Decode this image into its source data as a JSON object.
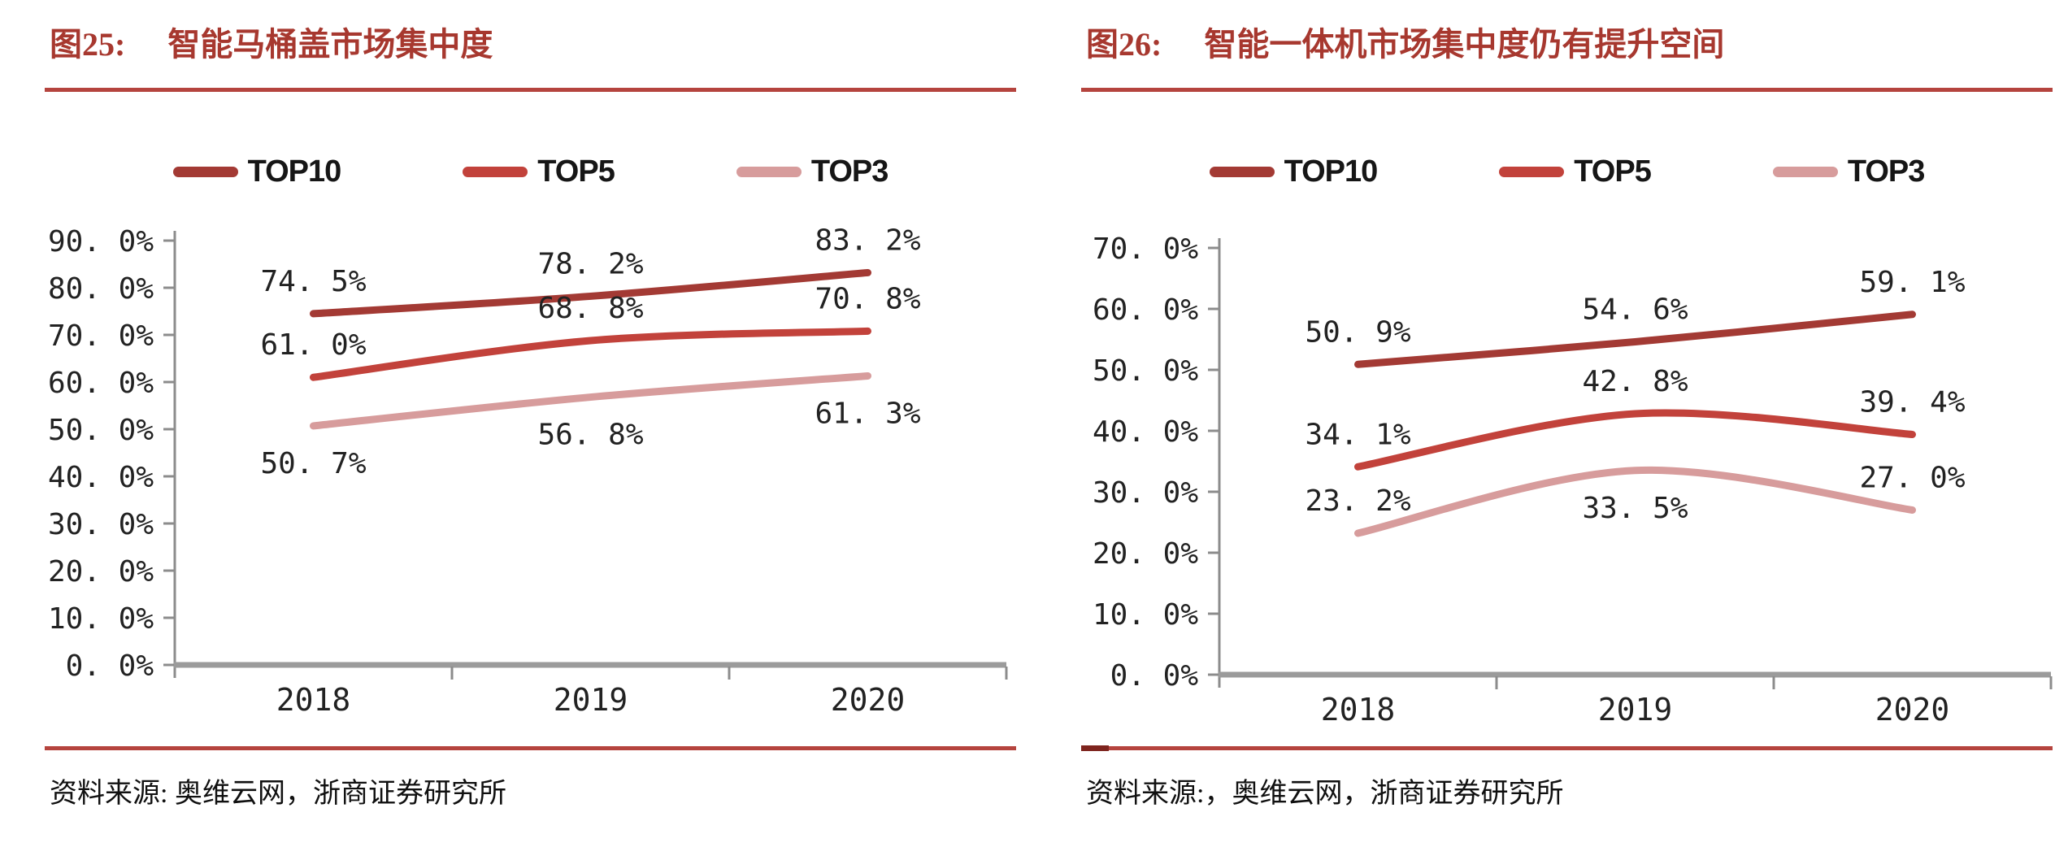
{
  "figures": [
    {
      "title_label": "图25:",
      "title": "智能马桶盖市场集中度",
      "source": "资料来源: 奥维云网，浙商证券研究所"
    },
    {
      "title_label": "图26:",
      "title": "智能一体机市场集中度仍有提升空间",
      "source": "资料来源:，奥维云网，浙商证券研究所"
    }
  ],
  "chart_data": [
    {
      "type": "line",
      "title": "智能马桶盖市场集中度",
      "categories": [
        "2018",
        "2019",
        "2020"
      ],
      "series": [
        {
          "name": "TOP10",
          "values": [
            74.5,
            78.2,
            83.2
          ],
          "labels": [
            "74. 5%",
            "78. 2%",
            "83. 2%"
          ],
          "label_side": [
            "above",
            "above",
            "above"
          ],
          "color": "#A33A34"
        },
        {
          "name": "TOP5",
          "values": [
            61.0,
            68.8,
            70.8
          ],
          "labels": [
            "61. 0%",
            "68. 8%",
            "70. 8%"
          ],
          "label_side": [
            "above",
            "above",
            "above"
          ],
          "color": "#C2423B"
        },
        {
          "name": "TOP3",
          "values": [
            50.7,
            56.8,
            61.3
          ],
          "labels": [
            "50. 7%",
            "56. 8%",
            "61. 3%"
          ],
          "label_side": [
            "below",
            "below",
            "below"
          ],
          "color": "#D79C9C"
        }
      ],
      "xlabel": "",
      "ylabel": "",
      "ylim": [
        0,
        90
      ],
      "ytick_step": 10,
      "ytick_labels": [
        "0. 0%",
        "10. 0%",
        "20. 0%",
        "30. 0%",
        "40. 0%",
        "50. 0%",
        "60. 0%",
        "70. 0%",
        "80. 0%",
        "90. 0%"
      ],
      "legend_position": "top",
      "grid": false,
      "smoothed_lines": true
    },
    {
      "type": "line",
      "title": "智能一体机市场集中度仍有提升空间",
      "categories": [
        "2018",
        "2019",
        "2020"
      ],
      "series": [
        {
          "name": "TOP10",
          "values": [
            50.9,
            54.6,
            59.1
          ],
          "labels": [
            "50. 9%",
            "54. 6%",
            "59. 1%"
          ],
          "label_side": [
            "above",
            "above",
            "above"
          ],
          "color": "#A33A34"
        },
        {
          "name": "TOP5",
          "values": [
            34.1,
            42.8,
            39.4
          ],
          "labels": [
            "34. 1%",
            "42. 8%",
            "39. 4%"
          ],
          "label_side": [
            "above",
            "above",
            "above"
          ],
          "color": "#C2423B"
        },
        {
          "name": "TOP3",
          "values": [
            23.2,
            33.5,
            27.0
          ],
          "labels": [
            "23. 2%",
            "33. 5%",
            "27. 0%"
          ],
          "label_side": [
            "above",
            "below",
            "above"
          ],
          "color": "#D79C9C"
        }
      ],
      "xlabel": "",
      "ylabel": "",
      "ylim": [
        0,
        70
      ],
      "ytick_step": 10,
      "ytick_labels": [
        "0. 0%",
        "10. 0%",
        "20. 0%",
        "30. 0%",
        "40. 0%",
        "50. 0%",
        "60. 0%",
        "70. 0%"
      ],
      "legend_position": "top",
      "grid": false,
      "smoothed_lines": true
    }
  ],
  "colors": {
    "title_red": "#A7382F",
    "divider_red": "#B5443E",
    "divider_cap_dark_red": "#7E241E",
    "axis_gray": "#8C8C8C",
    "baseline_gray": "#9B9B9B",
    "chart_text": "#222222"
  }
}
